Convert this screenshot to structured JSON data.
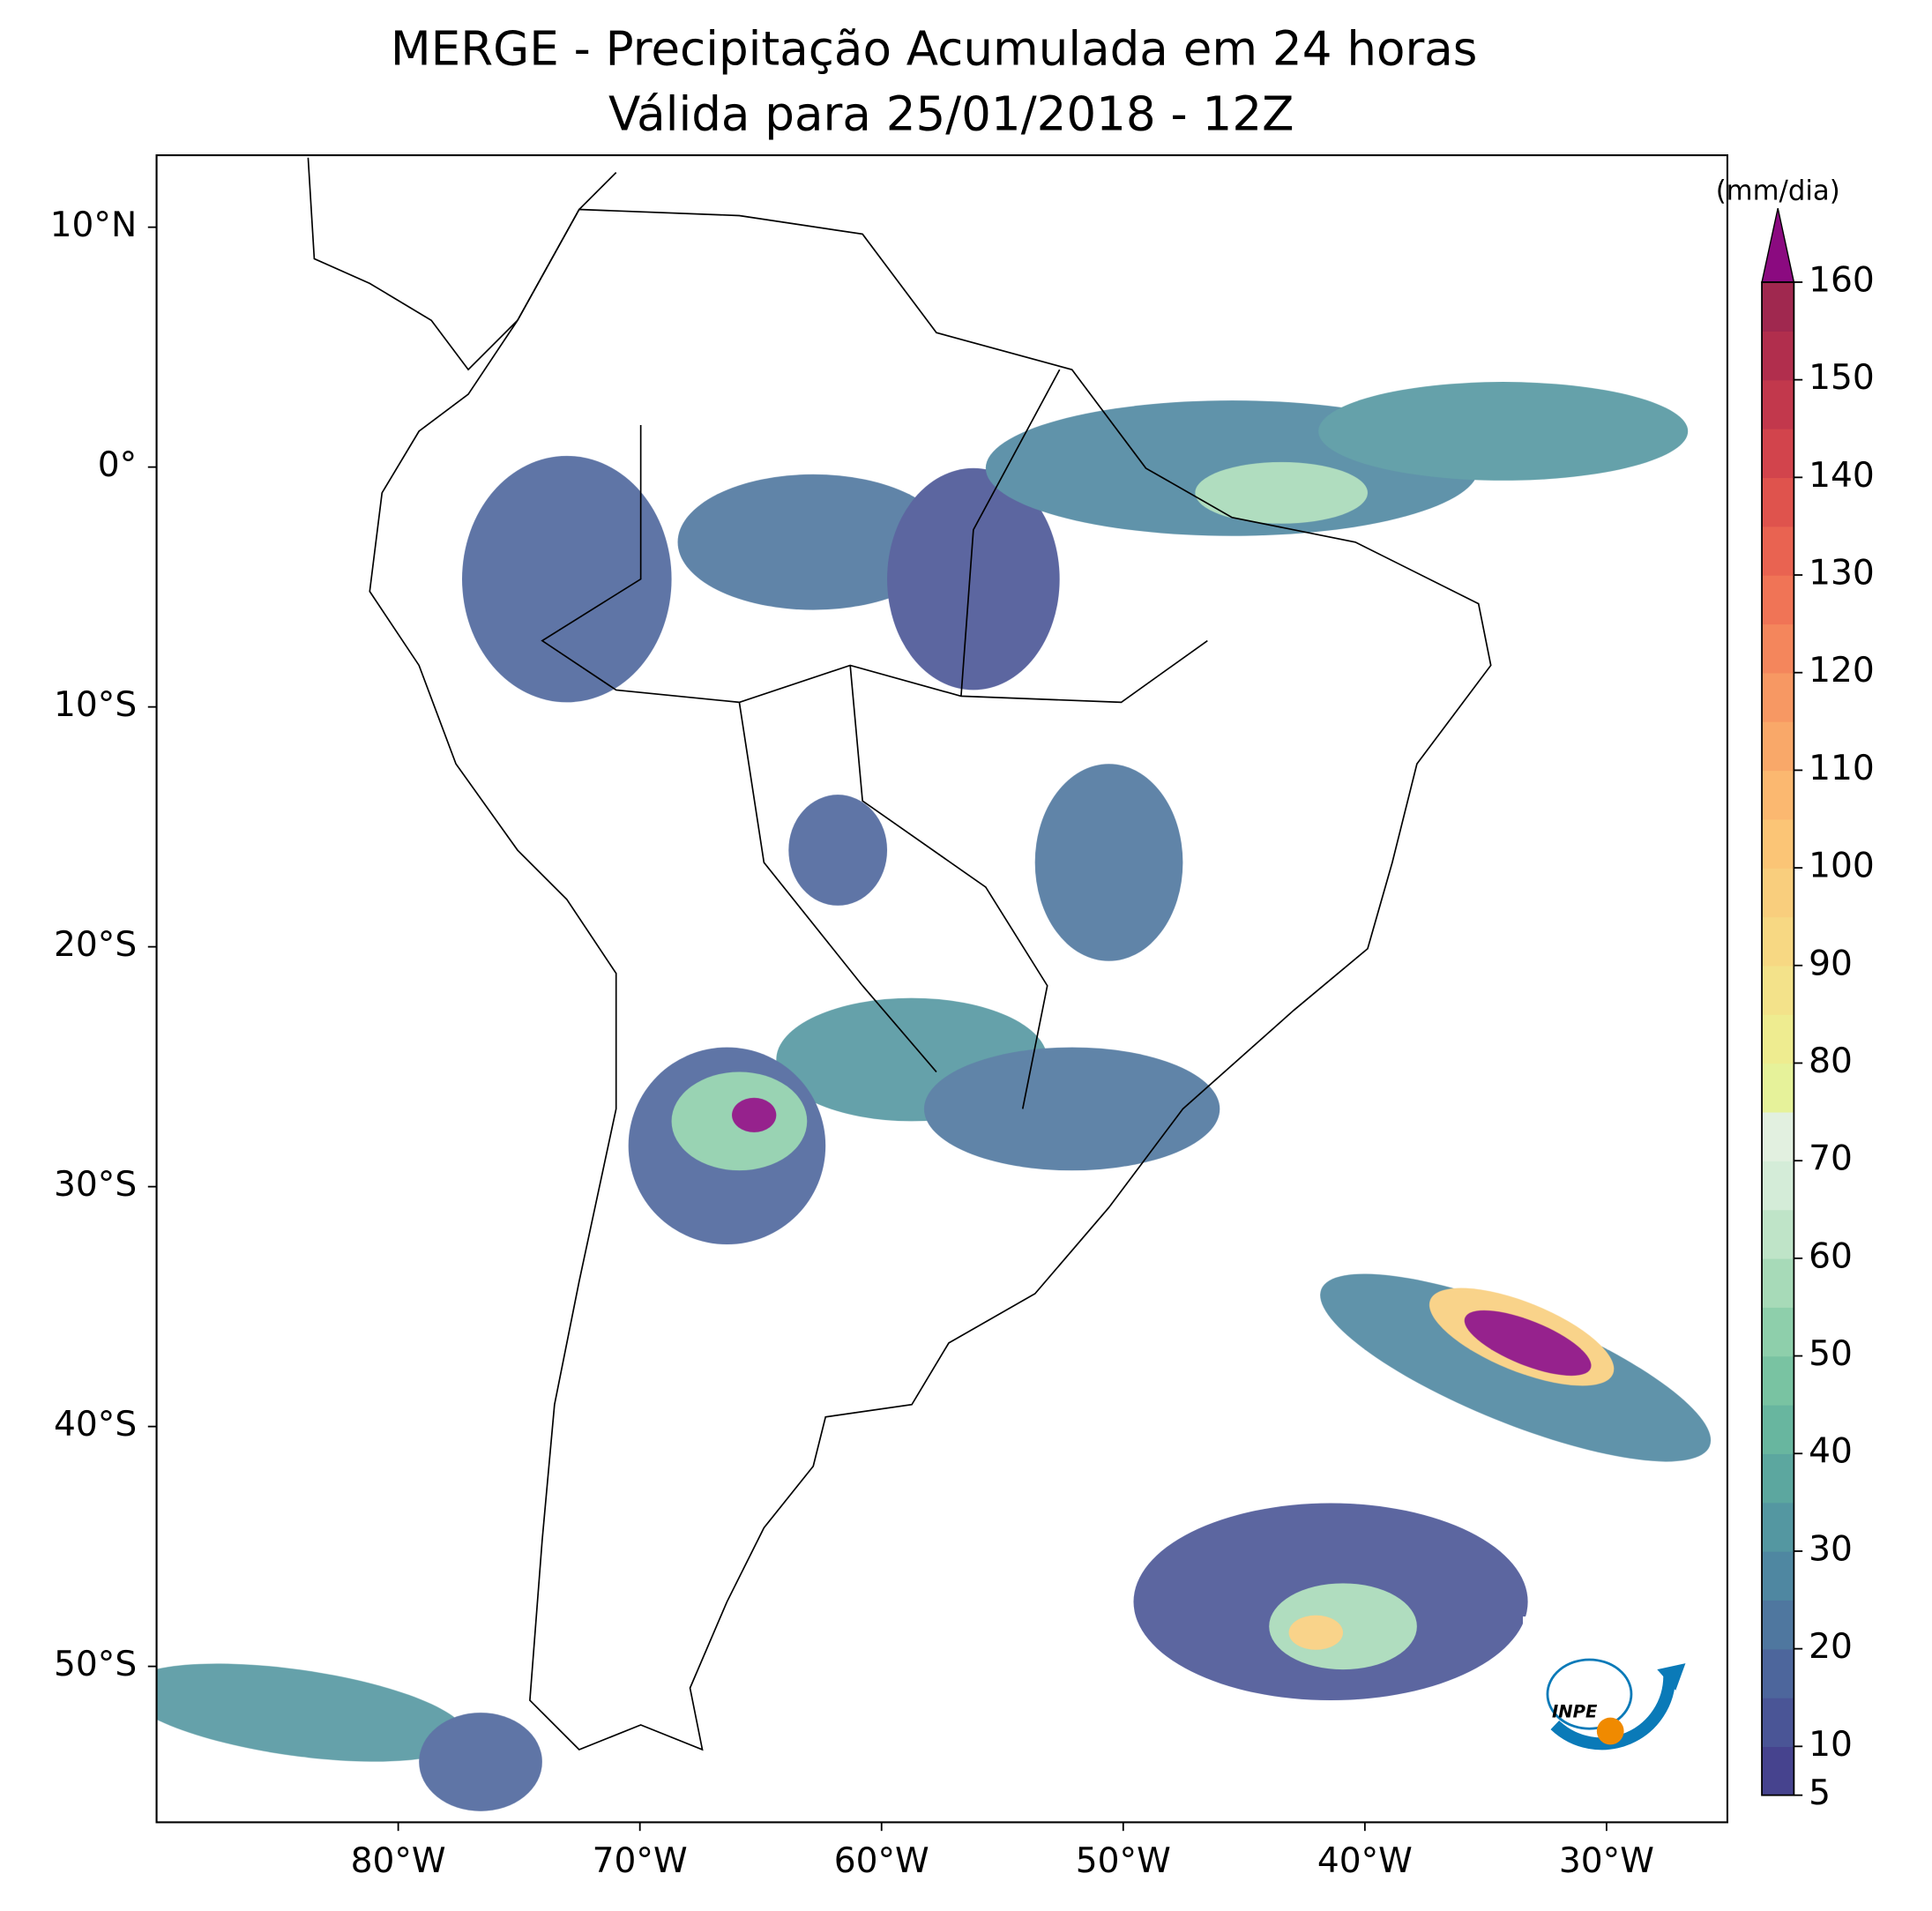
{
  "map": {
    "title": "MERGE - Precipitação Acumulada em 24 horas",
    "subtitle": "Válida para 25/01/2018 - 12Z",
    "lon_range": [
      -90,
      -25
    ],
    "lat_range": [
      -56.5,
      13
    ],
    "lon_ticks": [
      {
        "value": -80,
        "label": "80°W"
      },
      {
        "value": -70,
        "label": "70°W"
      },
      {
        "value": -60,
        "label": "60°W"
      },
      {
        "value": -50,
        "label": "50°W"
      },
      {
        "value": -40,
        "label": "40°W"
      },
      {
        "value": -30,
        "label": "30°W"
      }
    ],
    "lat_ticks": [
      {
        "value": 10,
        "label": "10°N"
      },
      {
        "value": 0,
        "label": "0°"
      },
      {
        "value": -10,
        "label": "10°S"
      },
      {
        "value": -20,
        "label": "20°S"
      },
      {
        "value": -30,
        "label": "30°S"
      },
      {
        "value": -40,
        "label": "40°S"
      },
      {
        "value": -50,
        "label": "50°S"
      }
    ],
    "logo_text": "INPE"
  },
  "colorbar": {
    "unit": "(mm/dia)",
    "range": [
      5,
      160
    ],
    "ticks": [
      5,
      10,
      20,
      30,
      40,
      50,
      60,
      70,
      80,
      90,
      100,
      110,
      120,
      130,
      140,
      150,
      160
    ],
    "colors": [
      "#46438e",
      "#4a5596",
      "#4d669c",
      "#4f779f",
      "#4f87a1",
      "#5497a1",
      "#5ca79f",
      "#68b69f",
      "#79c3a2",
      "#8ecfab",
      "#a7dab8",
      "#bfe4c8",
      "#d4ecd8",
      "#e2f0e0",
      "#e6f29a",
      "#eeec90",
      "#f3e28a",
      "#f7d883",
      "#f9ce7d",
      "#fbc576",
      "#fbb870",
      "#f9a869",
      "#f79863",
      "#f4865c",
      "#f07456",
      "#e96351",
      "#df534d",
      "#d2444c",
      "#c2384c",
      "#b12e4d",
      "#a0284f"
    ],
    "extend_color": "#8b0a80"
  }
}
